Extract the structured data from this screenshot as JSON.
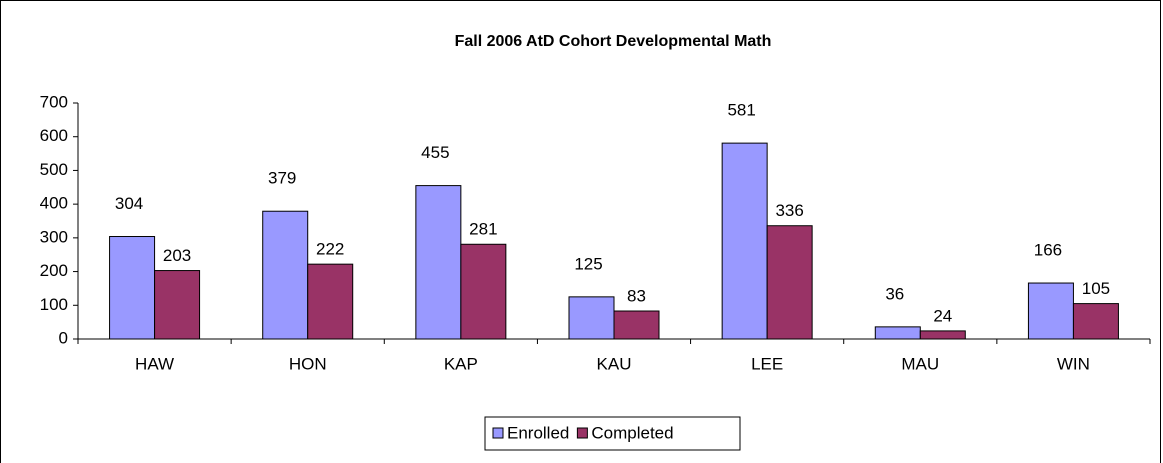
{
  "chart_data": {
    "type": "bar",
    "title": "Fall 2006 AtD Cohort Developmental Math",
    "categories": [
      "HAW",
      "HON",
      "KAP",
      "KAU",
      "LEE",
      "MAU",
      "WIN"
    ],
    "series": [
      {
        "name": "Enrolled",
        "color": "#9999ff",
        "values": [
          304,
          379,
          455,
          125,
          581,
          36,
          166
        ]
      },
      {
        "name": "Completed",
        "color": "#993366",
        "values": [
          203,
          222,
          281,
          83,
          336,
          24,
          105
        ]
      }
    ],
    "ylim": [
      0,
      700
    ],
    "yticks": [
      0,
      100,
      200,
      300,
      400,
      500,
      600,
      700
    ],
    "grid": false,
    "legend": "bottom"
  }
}
